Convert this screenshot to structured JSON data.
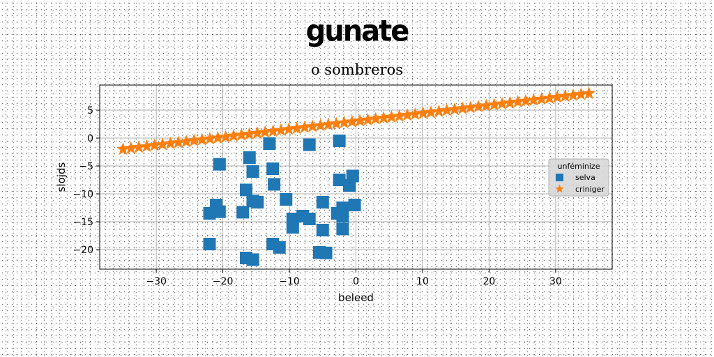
{
  "header": {
    "title": "gunate",
    "subtitle": "o sombreros"
  },
  "colors": {
    "series_1": "#1f77b4",
    "series_2": "#ff7f0e",
    "grid": "#b0b0b0"
  },
  "chart_data": {
    "type": "scatter",
    "title": "o sombreros",
    "xlabel": "beleed",
    "ylabel": "slojds",
    "xlim": [
      -38.5,
      38.5
    ],
    "ylim": [
      -23.5,
      9.5
    ],
    "xticks": [
      -30,
      -20,
      -10,
      0,
      10,
      20,
      30
    ],
    "yticks": [
      5,
      0,
      -5,
      -10,
      -15,
      -20
    ],
    "grid": true,
    "legend": {
      "title": "unféminize",
      "position": "center-right"
    },
    "series": [
      {
        "name": "selva",
        "marker": "square",
        "color": "#1f77b4",
        "points": [
          [
            -20.5,
            -4.7
          ],
          [
            -16,
            -3.5
          ],
          [
            -15.5,
            -6
          ],
          [
            -13,
            -1
          ],
          [
            -12.5,
            -5.5
          ],
          [
            -12.3,
            -8.3
          ],
          [
            -7,
            -1.2
          ],
          [
            -2.5,
            -0.5
          ],
          [
            -16.5,
            -9.3
          ],
          [
            -21,
            -12
          ],
          [
            -22,
            -13.5
          ],
          [
            -20.5,
            -13.2
          ],
          [
            -17,
            -13.3
          ],
          [
            -15.5,
            -11.3
          ],
          [
            -14.8,
            -11.5
          ],
          [
            -10.5,
            -11
          ],
          [
            -5,
            -11.5
          ],
          [
            -2.5,
            -7.5
          ],
          [
            -1,
            -8.5
          ],
          [
            -0.5,
            -6.8
          ],
          [
            -0.2,
            -12
          ],
          [
            -2,
            -12.5
          ],
          [
            -2.8,
            -13.5
          ],
          [
            -2,
            -14
          ],
          [
            -9.5,
            -14.5
          ],
          [
            -8,
            -14
          ],
          [
            -7,
            -14.5
          ],
          [
            -9.5,
            -16
          ],
          [
            -5,
            -16.5
          ],
          [
            -2,
            -16.3
          ],
          [
            -22,
            -19
          ],
          [
            -12.5,
            -19
          ],
          [
            -11.5,
            -19.6
          ],
          [
            -5.5,
            -20.5
          ],
          [
            -4.5,
            -20.6
          ],
          [
            -16.5,
            -21.5
          ],
          [
            -15.5,
            -21.8
          ]
        ]
      },
      {
        "name": "criniger",
        "marker": "star",
        "color": "#ff7f0e",
        "x_start": -35,
        "x_end": 35,
        "count": 60,
        "y_start": -2,
        "y_end": 8
      }
    ]
  }
}
